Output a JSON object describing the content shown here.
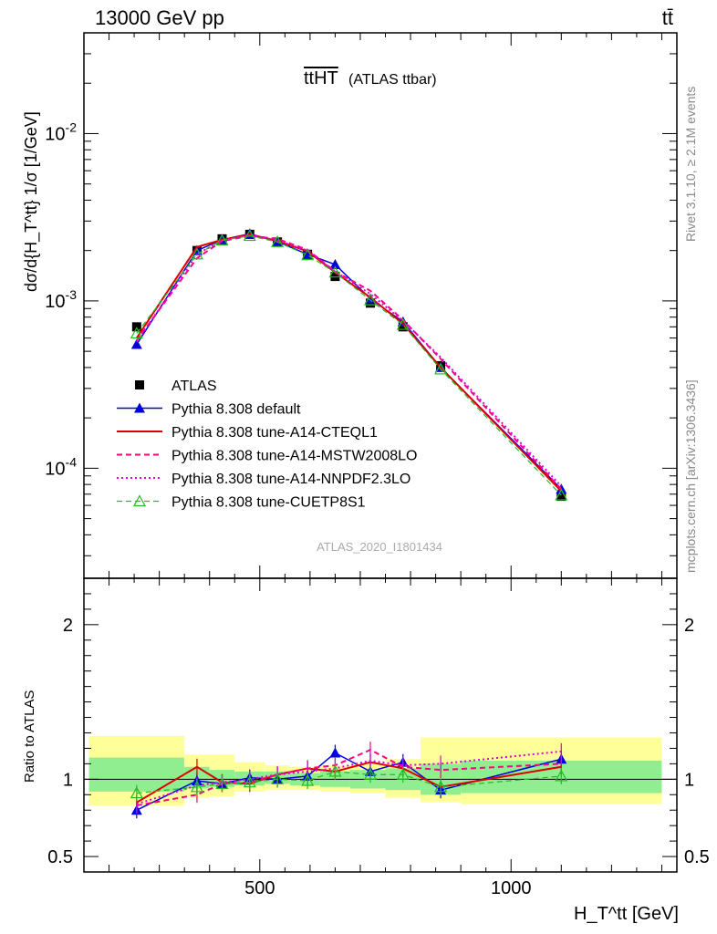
{
  "header": {
    "left": "13000 GeV pp",
    "right": "tt̄"
  },
  "plot_title": {
    "main": "ttHT",
    "sub": "(ATLAS ttbar)"
  },
  "right_labels": {
    "rivet": "Rivet 3.1.10, ≥ 2.1M events",
    "mcplots": "mcplots.cern.ch [arXiv:1306.3436]"
  },
  "watermark": "ATLAS_2020_I1801434",
  "colors": {
    "atlas": "#000000",
    "default": "#0000dd",
    "cteql1": "#dd0000",
    "mstw": "#ff0080",
    "nnpdf": "#dd00dd",
    "cuetp8s1": "#22bb22",
    "band_inner": "#90ee90",
    "band_outer": "#ffff99"
  },
  "chart_data": [
    {
      "type": "line",
      "yscale": "log",
      "ylabel": "dσ/d{H_T^tt} 1/σ [1/GeV]",
      "ylim": [
        2.2e-05,
        0.04
      ],
      "xlim": [
        150,
        1330
      ],
      "ytick_labels": [
        "10^-4",
        "10^-3",
        "10^-2"
      ],
      "x": [
        255,
        375,
        425,
        480,
        535,
        595,
        650,
        720,
        785,
        860,
        1100
      ],
      "series": [
        {
          "name": "ATLAS",
          "values": [
            0.0007,
            0.002,
            0.00235,
            0.0025,
            0.00225,
            0.0019,
            0.0014,
            0.00097,
            0.0007,
            0.00041,
            6.8e-05
          ]
        },
        {
          "name": "Pythia 8.308 default",
          "values": [
            0.00055,
            0.002,
            0.00232,
            0.00252,
            0.00226,
            0.0019,
            0.00165,
            0.00103,
            0.00075,
            0.0004,
            7.5e-05
          ]
        },
        {
          "name": "Pythia 8.308 tune-A14-CTEQL1",
          "values": [
            0.0006,
            0.0021,
            0.00232,
            0.0025,
            0.00228,
            0.00198,
            0.00148,
            0.00105,
            0.00073,
            0.0004,
            7.3e-05
          ]
        },
        {
          "name": "Pythia 8.308 tune-A14-MSTW2008LO",
          "values": [
            0.00058,
            0.0018,
            0.00228,
            0.00245,
            0.00235,
            0.00202,
            0.0015,
            0.00115,
            0.00077,
            0.00045,
            7.5e-05
          ]
        },
        {
          "name": "Pythia 8.308 tune-A14-NNPDF2.3LO",
          "values": [
            0.00057,
            0.0019,
            0.0023,
            0.00248,
            0.0023,
            0.002,
            0.0015,
            0.0011,
            0.00076,
            0.00046,
            7.8e-05
          ]
        },
        {
          "name": "Pythia 8.308 tune-CUETP8S1",
          "values": [
            0.00064,
            0.0019,
            0.0023,
            0.00245,
            0.00225,
            0.00188,
            0.00148,
            0.00101,
            0.00072,
            0.00039,
            6.9e-05
          ]
        }
      ]
    },
    {
      "type": "line",
      "xlabel": "H_T^tt [GeV]",
      "ylabel": "Ratio to ATLAS",
      "ylim": [
        0.4,
        2.3
      ],
      "xlim": [
        150,
        1330
      ],
      "ytick_labels": [
        "0.5",
        "1",
        "2"
      ],
      "xtick_labels": [
        "500",
        "1000"
      ],
      "x": [
        255,
        375,
        425,
        480,
        535,
        595,
        650,
        720,
        785,
        860,
        1100
      ],
      "bands": [
        {
          "x": [
            160,
            350
          ],
          "inner": [
            0.92,
            1.14
          ],
          "outer": [
            0.83,
            1.28
          ]
        },
        {
          "x": [
            350,
            400
          ],
          "inner": [
            0.94,
            1.08
          ],
          "outer": [
            0.88,
            1.16
          ]
        },
        {
          "x": [
            400,
            450
          ],
          "inner": [
            0.95,
            1.06
          ],
          "outer": [
            0.89,
            1.16
          ]
        },
        {
          "x": [
            450,
            510
          ],
          "inner": [
            0.96,
            1.05
          ],
          "outer": [
            0.92,
            1.11
          ]
        },
        {
          "x": [
            510,
            560
          ],
          "inner": [
            0.97,
            1.05
          ],
          "outer": [
            0.93,
            1.09
          ]
        },
        {
          "x": [
            560,
            620
          ],
          "inner": [
            0.96,
            1.04
          ],
          "outer": [
            0.93,
            1.08
          ]
        },
        {
          "x": [
            620,
            680
          ],
          "inner": [
            0.95,
            1.05
          ],
          "outer": [
            0.92,
            1.09
          ]
        },
        {
          "x": [
            680,
            750
          ],
          "inner": [
            0.94,
            1.06
          ],
          "outer": [
            0.91,
            1.1
          ]
        },
        {
          "x": [
            750,
            820
          ],
          "inner": [
            0.93,
            1.07
          ],
          "outer": [
            0.88,
            1.13
          ]
        },
        {
          "x": [
            820,
            900
          ],
          "inner": [
            0.9,
            1.1
          ],
          "outer": [
            0.85,
            1.27
          ]
        },
        {
          "x": [
            900,
            1300
          ],
          "inner": [
            0.91,
            1.12
          ],
          "outer": [
            0.84,
            1.27
          ]
        }
      ],
      "series": [
        {
          "name": "Pythia 8.308 default",
          "values": [
            0.8,
            0.99,
            0.97,
            1.01,
            1.0,
            1.02,
            1.17,
            1.05,
            1.11,
            0.93,
            1.13
          ]
        },
        {
          "name": "Pythia 8.308 tune-A14-CTEQL1",
          "values": [
            0.85,
            1.08,
            0.98,
            0.97,
            1.03,
            1.07,
            1.05,
            1.11,
            1.07,
            0.95,
            1.08
          ]
        },
        {
          "name": "Pythia 8.308 tune-A14-MSTW2008LO",
          "values": [
            0.83,
            0.9,
            0.97,
            0.98,
            1.03,
            1.07,
            1.09,
            1.19,
            1.08,
            1.06,
            1.1
          ]
        },
        {
          "name": "Pythia 8.308 tune-A14-NNPDF2.3LO",
          "values": [
            0.84,
            0.96,
            0.98,
            1.0,
            1.03,
            1.05,
            1.07,
            1.12,
            1.09,
            1.1,
            1.18
          ]
        },
        {
          "name": "Pythia 8.308 tune-CUETP8S1",
          "values": [
            0.91,
            0.95,
            0.97,
            0.98,
            1.0,
            0.99,
            1.05,
            1.03,
            1.03,
            0.95,
            1.02
          ]
        }
      ]
    }
  ]
}
